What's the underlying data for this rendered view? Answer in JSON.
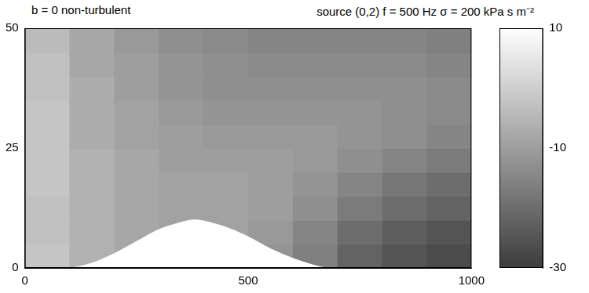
{
  "chart_data": {
    "type": "heatmap",
    "title": "b = 0  non-turbulent",
    "subtitle": "source (0,2)  f = 500 Hz  σ = 200 kPa s m⁻²",
    "x": [
      0,
      100,
      200,
      300,
      400,
      500,
      600,
      700,
      800,
      900,
      1000
    ],
    "y": [
      0,
      5,
      10,
      15,
      20,
      25,
      30,
      35,
      40,
      45,
      50
    ],
    "cells": [
      [
        -2,
        -6,
        -8,
        -9,
        -10,
        -12,
        -16,
        -22,
        -25,
        -27
      ],
      [
        -3,
        -6,
        -8,
        -9,
        -9,
        -11,
        -15,
        -20,
        -23,
        -25
      ],
      [
        -3,
        -6,
        -8,
        -9,
        -9,
        -10,
        -13,
        -17,
        -20,
        -22
      ],
      [
        -2,
        -6,
        -8,
        -9,
        -9,
        -10,
        -12,
        -15,
        -18,
        -20
      ],
      [
        -2,
        -6,
        -8,
        -10,
        -10,
        -10,
        -11,
        -13,
        -15,
        -17
      ],
      [
        -2,
        -7,
        -9,
        -10,
        -11,
        -11,
        -11,
        -12,
        -13,
        -15
      ],
      [
        -2,
        -7,
        -9,
        -11,
        -12,
        -12,
        -12,
        -12,
        -13,
        -14
      ],
      [
        -3,
        -7,
        -10,
        -12,
        -13,
        -13,
        -13,
        -13,
        -13,
        -14
      ],
      [
        -3,
        -8,
        -10,
        -12,
        -13,
        -14,
        -14,
        -14,
        -14,
        -15
      ],
      [
        -4,
        -8,
        -11,
        -13,
        -14,
        -15,
        -15,
        -15,
        -15,
        -16
      ]
    ],
    "terrain": {
      "x": [
        0,
        100,
        150,
        200,
        250,
        300,
        350,
        375,
        400,
        450,
        500,
        550,
        600,
        650,
        680,
        1000
      ],
      "y": [
        0,
        0,
        1,
        3,
        5.5,
        8,
        9.5,
        10,
        9.8,
        8.5,
        6.5,
        4,
        2,
        0.5,
        0,
        0
      ],
      "color": "#ffffff"
    },
    "xlim": [
      0,
      1000
    ],
    "xticks": [
      0,
      500,
      1000
    ],
    "ylim": [
      0,
      50
    ],
    "yticks": [
      0,
      25,
      50
    ],
    "colorbar": {
      "range": [
        -30,
        10
      ],
      "ticks": [
        10,
        -10,
        -30
      ]
    },
    "grid": false
  }
}
